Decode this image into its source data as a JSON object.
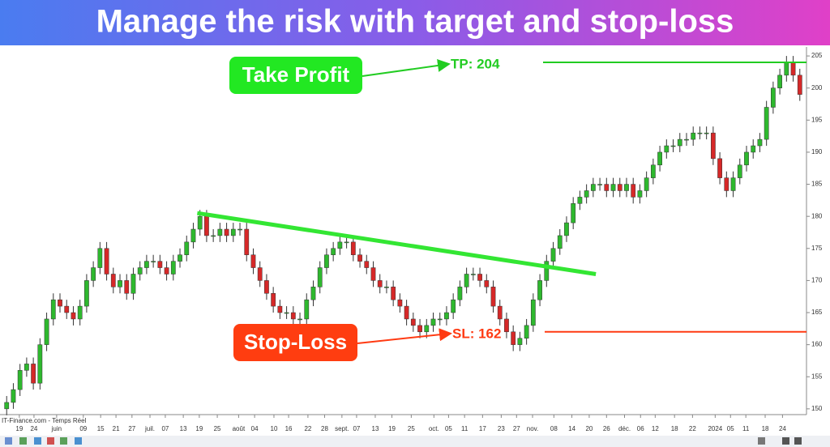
{
  "chart_data": {
    "type": "candlestick",
    "title": "Manage the risk with target and stop-loss",
    "source": "IT-Finance.com - Temps Réel",
    "xlim": [
      -1,
      120
    ],
    "ylim": [
      149.1,
      206.4
    ],
    "yticks": [
      150,
      155,
      160,
      165,
      170,
      175,
      180,
      185,
      190,
      195,
      200,
      205
    ],
    "xticks": [
      {
        "value": 1.9,
        "label": "19"
      },
      {
        "value": 4.1,
        "label": "24"
      },
      {
        "value": 7.5,
        "label": "juin"
      },
      {
        "value": 11.5,
        "label": "09"
      },
      {
        "value": 14.1,
        "label": "15"
      },
      {
        "value": 16.4,
        "label": "21"
      },
      {
        "value": 18.8,
        "label": "27"
      },
      {
        "value": 21.5,
        "label": "juil."
      },
      {
        "value": 23.8,
        "label": "07"
      },
      {
        "value": 26.5,
        "label": "13"
      },
      {
        "value": 28.9,
        "label": "19"
      },
      {
        "value": 31.6,
        "label": "25"
      },
      {
        "value": 34.8,
        "label": "août"
      },
      {
        "value": 37.2,
        "label": "04"
      },
      {
        "value": 40.1,
        "label": "10"
      },
      {
        "value": 42.3,
        "label": "16"
      },
      {
        "value": 45.2,
        "label": "22"
      },
      {
        "value": 47.7,
        "label": "28"
      },
      {
        "value": 50.3,
        "label": "sept."
      },
      {
        "value": 52.5,
        "label": "07"
      },
      {
        "value": 55.3,
        "label": "13"
      },
      {
        "value": 57.8,
        "label": "19"
      },
      {
        "value": 60.7,
        "label": "25"
      },
      {
        "value": 64.1,
        "label": "oct."
      },
      {
        "value": 66.3,
        "label": "05"
      },
      {
        "value": 68.7,
        "label": "11"
      },
      {
        "value": 71.4,
        "label": "17"
      },
      {
        "value": 74.2,
        "label": "23"
      },
      {
        "value": 76.5,
        "label": "27"
      },
      {
        "value": 78.9,
        "label": "nov."
      },
      {
        "value": 82.1,
        "label": "08"
      },
      {
        "value": 84.8,
        "label": "14"
      },
      {
        "value": 87.4,
        "label": "20"
      },
      {
        "value": 90.0,
        "label": "26"
      },
      {
        "value": 92.7,
        "label": "déc."
      },
      {
        "value": 95.1,
        "label": "06"
      },
      {
        "value": 97.3,
        "label": "12"
      },
      {
        "value": 100.2,
        "label": "18"
      },
      {
        "value": 102.9,
        "label": "22"
      },
      {
        "value": 106.3,
        "label": "2024"
      },
      {
        "value": 108.6,
        "label": "05"
      },
      {
        "value": 110.9,
        "label": "11"
      },
      {
        "value": 113.8,
        "label": "18"
      },
      {
        "value": 116.4,
        "label": "24"
      }
    ],
    "up_color": "#2eb82e",
    "down_color": "#d62828",
    "open": [
      150,
      151,
      153,
      156,
      157,
      154,
      160,
      164,
      167,
      166,
      165,
      164,
      166,
      170,
      172,
      175,
      171,
      169,
      170,
      168,
      171,
      172,
      173,
      173,
      172,
      171,
      173,
      174,
      176,
      178,
      180,
      177,
      177,
      178,
      177,
      178,
      178,
      174,
      172,
      170,
      168,
      166,
      165,
      165,
      164,
      164,
      167,
      169,
      172,
      174,
      175,
      176,
      176,
      174,
      173,
      172,
      170,
      169,
      169,
      167,
      166,
      164,
      163,
      162,
      163,
      164,
      164,
      165,
      167,
      169,
      171,
      171,
      170,
      169,
      166,
      164,
      162,
      160,
      161,
      163,
      167,
      170,
      173,
      175,
      177,
      179,
      182,
      183,
      184,
      185,
      185,
      184,
      185,
      184,
      185,
      183,
      184,
      186,
      188,
      190,
      191,
      191,
      192,
      192,
      193,
      193,
      193,
      189,
      186,
      184,
      186,
      188,
      190,
      191,
      192,
      197,
      200,
      202,
      204,
      202
    ],
    "high": [
      152,
      154,
      157,
      158,
      158,
      161,
      165,
      168,
      168,
      167,
      166,
      167,
      171,
      173,
      176,
      176,
      172,
      171,
      171,
      172,
      173,
      174,
      174,
      174,
      173,
      174,
      175,
      177,
      179,
      181,
      181,
      178,
      179,
      179,
      179,
      179,
      179,
      175,
      173,
      171,
      169,
      167,
      166,
      166,
      165,
      168,
      170,
      173,
      175,
      176,
      177,
      177,
      177,
      175,
      174,
      173,
      171,
      170,
      170,
      168,
      167,
      165,
      164,
      164,
      165,
      165,
      166,
      168,
      170,
      172,
      172,
      172,
      171,
      170,
      167,
      165,
      163,
      162,
      164,
      168,
      171,
      174,
      176,
      178,
      180,
      183,
      184,
      185,
      186,
      186,
      186,
      186,
      186,
      186,
      186,
      185,
      187,
      189,
      191,
      192,
      192,
      193,
      193,
      194,
      194,
      194,
      194,
      190,
      187,
      187,
      189,
      191,
      192,
      193,
      198,
      201,
      203,
      205,
      205,
      203
    ],
    "low": [
      149,
      150,
      152,
      155,
      153,
      153,
      159,
      163,
      165,
      164,
      163,
      163,
      165,
      169,
      171,
      170,
      168,
      168,
      167,
      167,
      170,
      171,
      172,
      171,
      170,
      170,
      172,
      173,
      175,
      177,
      176,
      176,
      176,
      176,
      176,
      177,
      173,
      171,
      169,
      167,
      165,
      164,
      164,
      163,
      163,
      163,
      166,
      168,
      171,
      173,
      174,
      175,
      173,
      172,
      171,
      169,
      168,
      168,
      166,
      165,
      163,
      162,
      161,
      161,
      162,
      163,
      163,
      164,
      166,
      168,
      170,
      169,
      168,
      165,
      163,
      161,
      159,
      159,
      160,
      162,
      166,
      169,
      172,
      174,
      176,
      178,
      181,
      182,
      183,
      184,
      183,
      183,
      183,
      183,
      182,
      182,
      183,
      185,
      187,
      189,
      190,
      190,
      191,
      191,
      192,
      192,
      188,
      185,
      183,
      183,
      185,
      187,
      189,
      190,
      191,
      196,
      199,
      201,
      201,
      198
    ],
    "close": [
      151,
      153,
      156,
      157,
      154,
      160,
      164,
      167,
      166,
      165,
      164,
      166,
      170,
      172,
      175,
      171,
      169,
      170,
      168,
      171,
      172,
      173,
      173,
      172,
      171,
      173,
      174,
      176,
      178,
      180,
      177,
      177,
      178,
      177,
      178,
      178,
      174,
      172,
      170,
      168,
      166,
      165,
      165,
      164,
      164,
      167,
      169,
      172,
      174,
      175,
      176,
      176,
      174,
      173,
      172,
      170,
      169,
      169,
      167,
      166,
      164,
      163,
      162,
      163,
      164,
      164,
      165,
      167,
      169,
      171,
      171,
      170,
      169,
      166,
      164,
      162,
      160,
      161,
      163,
      167,
      170,
      173,
      175,
      177,
      179,
      182,
      183,
      184,
      185,
      185,
      184,
      185,
      184,
      185,
      183,
      184,
      186,
      188,
      190,
      191,
      191,
      192,
      192,
      193,
      193,
      193,
      189,
      186,
      184,
      186,
      188,
      190,
      191,
      192,
      197,
      200,
      202,
      204,
      202,
      199
    ],
    "trendline": {
      "color": "#33e633",
      "x": [
        28.6,
        88.4
      ],
      "y": [
        180.5,
        171
      ]
    },
    "levels": [
      {
        "label": "TP: 204",
        "value": 204,
        "color": "#22cc22",
        "annotation": "Take Profit",
        "box_color": "#22e822"
      },
      {
        "label": "SL: 162",
        "value": 162,
        "color": "#ff3a12",
        "annotation": "Stop-Loss",
        "box_color": "#ff3d10"
      }
    ]
  }
}
